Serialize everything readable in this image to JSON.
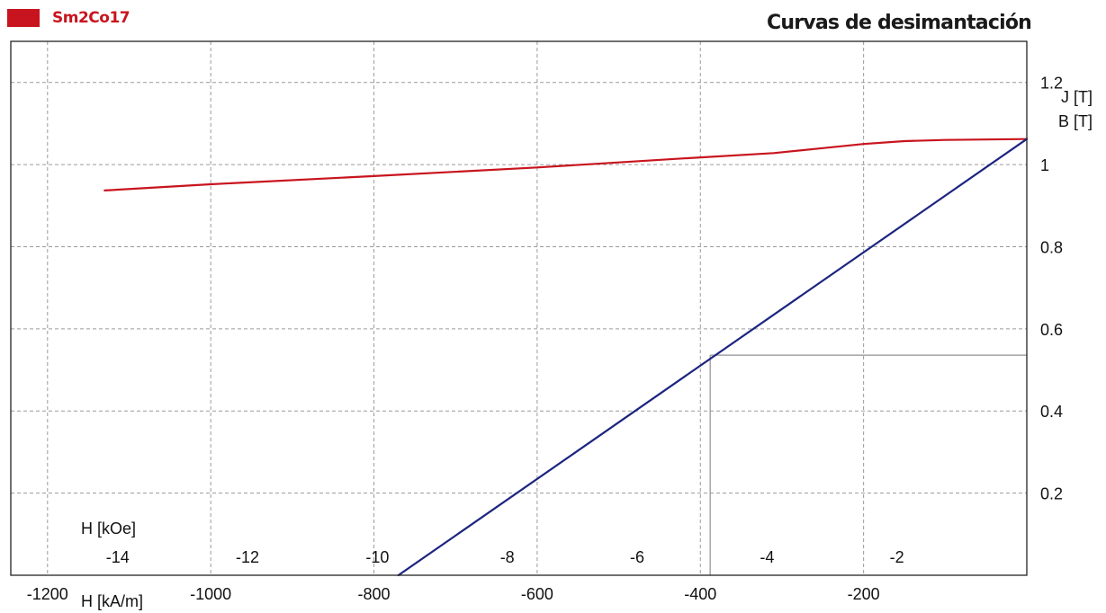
{
  "legend": {
    "label": "Sm2Co17",
    "color": "#c8141e"
  },
  "chart_data": {
    "type": "line",
    "title": "Curvas de desimantación",
    "xlabel": "H [kA/m]",
    "x2label": "H [kOe]",
    "y_series_labels": [
      "J [T]",
      "B [T]"
    ],
    "xlim": [
      -1245,
      0
    ],
    "ylim": [
      0,
      1.3
    ],
    "x_ticks": [
      -1200,
      -1000,
      -800,
      -600,
      -400,
      -200
    ],
    "x_tick_labels": [
      "-1200",
      "-1000",
      "-800",
      "-600",
      "-400",
      "-200"
    ],
    "x2_ticks_kOe": [
      -14,
      -12,
      -10,
      -8,
      -6,
      -4,
      -2
    ],
    "x2_tick_labels": [
      "-14",
      "-12",
      "-10",
      "-8",
      "-6",
      "-4",
      "-2"
    ],
    "y_ticks": [
      0.2,
      0.4,
      0.6,
      0.8,
      1,
      1.2
    ],
    "y_tick_labels": [
      "0.2",
      "0.4",
      "0.6",
      "0.8",
      "1",
      "1.2"
    ],
    "grid": true,
    "colors": {
      "J": "#c8141e",
      "B": "#1c2580",
      "grid": "#9a9a9a",
      "marker": "#909090"
    },
    "series": [
      {
        "name": "J [T]",
        "color": "#c8141e",
        "x": [
          -1130,
          -1000,
          -800,
          -600,
          -420,
          -310,
          -250,
          -200,
          -150,
          -100,
          0
        ],
        "y": [
          0.937,
          0.952,
          0.972,
          0.993,
          1.015,
          1.028,
          1.04,
          1.05,
          1.057,
          1.06,
          1.062
        ]
      },
      {
        "name": "B [T]",
        "color": "#1c2580",
        "x": [
          -770,
          0
        ],
        "y": [
          0.0,
          1.062
        ]
      }
    ],
    "marker": {
      "x": -388,
      "y": 0.536
    }
  }
}
